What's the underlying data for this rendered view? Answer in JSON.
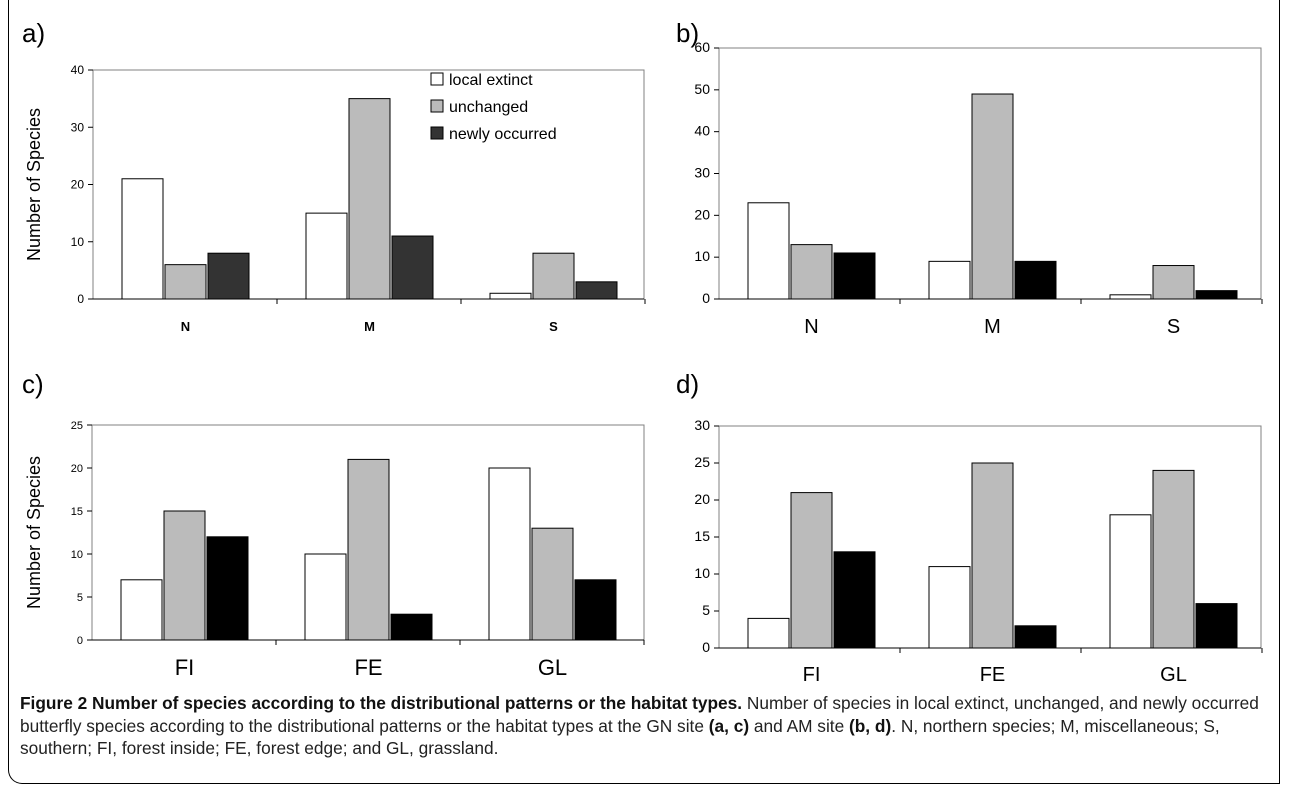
{
  "chart_data": [
    {
      "panel": "a)",
      "type": "bar",
      "categories": [
        "N",
        "M",
        "S"
      ],
      "ylabel": "Number of Species",
      "ylim": [
        0,
        40
      ],
      "yticks": [
        0,
        10,
        20,
        30,
        40
      ],
      "legend": "top-right",
      "series": [
        {
          "name": "local extinct",
          "values": [
            21,
            15,
            1
          ]
        },
        {
          "name": "unchanged",
          "values": [
            6,
            35,
            8
          ]
        },
        {
          "name": "newly occurred",
          "values": [
            8,
            11,
            3
          ]
        }
      ],
      "colors": [
        "#ffffff",
        "#bbbbbb",
        "#333333"
      ]
    },
    {
      "panel": "b)",
      "type": "bar",
      "categories": [
        "N",
        "M",
        "S"
      ],
      "ylim": [
        0,
        60
      ],
      "yticks": [
        0,
        10,
        20,
        30,
        40,
        50,
        60
      ],
      "series": [
        {
          "values": [
            23,
            9,
            1
          ]
        },
        {
          "values": [
            13,
            49,
            8
          ]
        },
        {
          "values": [
            11,
            9,
            2
          ]
        }
      ],
      "colors": [
        "#ffffff",
        "#bbbbbb",
        "#000000"
      ]
    },
    {
      "panel": "c)",
      "type": "bar",
      "categories": [
        "FI",
        "FE",
        "GL"
      ],
      "ylabel": "Number of Species",
      "ylim": [
        0,
        25
      ],
      "yticks": [
        0,
        5,
        10,
        15,
        20,
        25
      ],
      "series": [
        {
          "values": [
            7,
            10,
            20
          ]
        },
        {
          "values": [
            15,
            21,
            13
          ]
        },
        {
          "values": [
            12,
            3,
            7
          ]
        }
      ],
      "colors": [
        "#ffffff",
        "#bbbbbb",
        "#000000"
      ]
    },
    {
      "panel": "d)",
      "type": "bar",
      "categories": [
        "FI",
        "FE",
        "GL"
      ],
      "ylim": [
        0,
        30
      ],
      "yticks": [
        0,
        5,
        10,
        15,
        20,
        25,
        30
      ],
      "series": [
        {
          "values": [
            4,
            11,
            18
          ]
        },
        {
          "values": [
            21,
            25,
            24
          ]
        },
        {
          "values": [
            13,
            3,
            6
          ]
        }
      ],
      "colors": [
        "#ffffff",
        "#bbbbbb",
        "#000000"
      ]
    }
  ],
  "caption": {
    "title": "Figure 2 Number of species according to the distributional patterns or the habitat types.",
    "text_1": " Number of species in local extinct, unchanged, and newly occurred butterfly species according to the distributional patterns or the habitat types at the GN site ",
    "ref_1": "(a, c)",
    "text_2": " and AM site ",
    "ref_2": "(b, d)",
    "text_3": ". N, northern species; M, miscellaneous; S, southern; FI, forest inside; FE, forest edge; and GL, grassland."
  }
}
